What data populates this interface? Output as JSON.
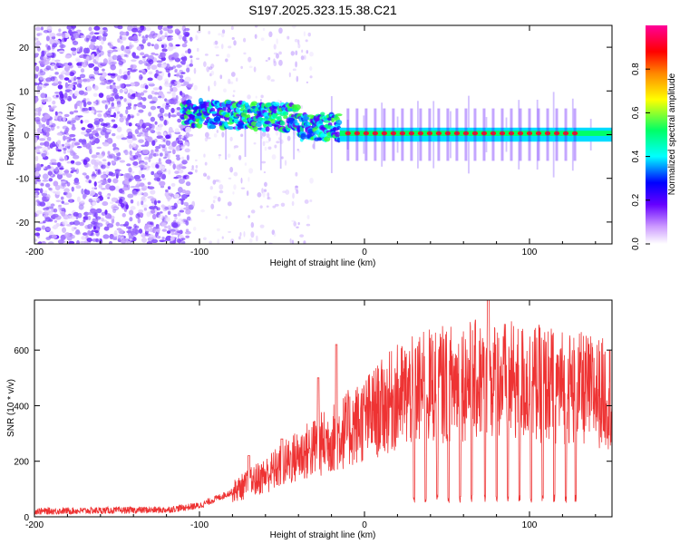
{
  "title": "S197.2025.323.15.38.C21",
  "chart_data": [
    {
      "type": "heatmap",
      "name": "spectrogram",
      "xlabel": "Height of straight line (km)",
      "ylabel": "Frequency (Hz)",
      "xlim": [
        -200,
        150
      ],
      "ylim": [
        -25,
        25
      ],
      "xticks": [
        -200,
        -100,
        0,
        100
      ],
      "yticks": [
        -20,
        -10,
        0,
        10,
        20
      ],
      "colorbar": {
        "label": "Normalized spectral amplitude",
        "range": [
          0,
          1
        ],
        "ticks": [
          0.0,
          0.2,
          0.4,
          0.6,
          0.8
        ],
        "tick_labels": [
          "0.0",
          "0.2",
          "0.4",
          "0.6",
          "0.8"
        ],
        "colors": [
          "#ffffff",
          "#cc99ff",
          "#6600ff",
          "#0000ff",
          "#00ffff",
          "#00ff66",
          "#ffff00",
          "#ff8800",
          "#ff0000",
          "#ff0099"
        ]
      },
      "features": {
        "noise_region_x": [
          -200,
          -105
        ],
        "signal_start_x": -110,
        "line_x_range": [
          -110,
          150
        ],
        "line_freq_start": 5,
        "line_freq_end": 0.5
      }
    },
    {
      "type": "line",
      "name": "snr",
      "xlabel": "Height of straight line (km)",
      "ylabel": "SNR (10 * v/v)",
      "xlim": [
        -200,
        150
      ],
      "ylim": [
        0,
        780
      ],
      "xticks": [
        -200,
        -100,
        0,
        100
      ],
      "yticks": [
        0,
        200,
        400,
        600
      ],
      "color": "#ee3333",
      "series": [
        {
          "name": "SNR",
          "envelope_x": [
            -200,
            -120,
            -100,
            -80,
            -60,
            -40,
            -20,
            0,
            20,
            40,
            60,
            80,
            100,
            120,
            150
          ],
          "envelope_y": [
            20,
            25,
            40,
            90,
            150,
            220,
            280,
            350,
            430,
            470,
            490,
            490,
            480,
            470,
            440
          ],
          "peaks": [
            [
              -70,
              220
            ],
            [
              -50,
              280
            ],
            [
              -28,
              500
            ],
            [
              -17,
              620
            ],
            [
              75,
              780
            ]
          ],
          "dips_x": [
            30,
            37,
            44,
            51,
            58,
            65,
            73,
            80,
            87,
            94,
            101,
            108,
            115,
            122,
            128
          ],
          "dip_y": 50
        }
      ]
    }
  ]
}
